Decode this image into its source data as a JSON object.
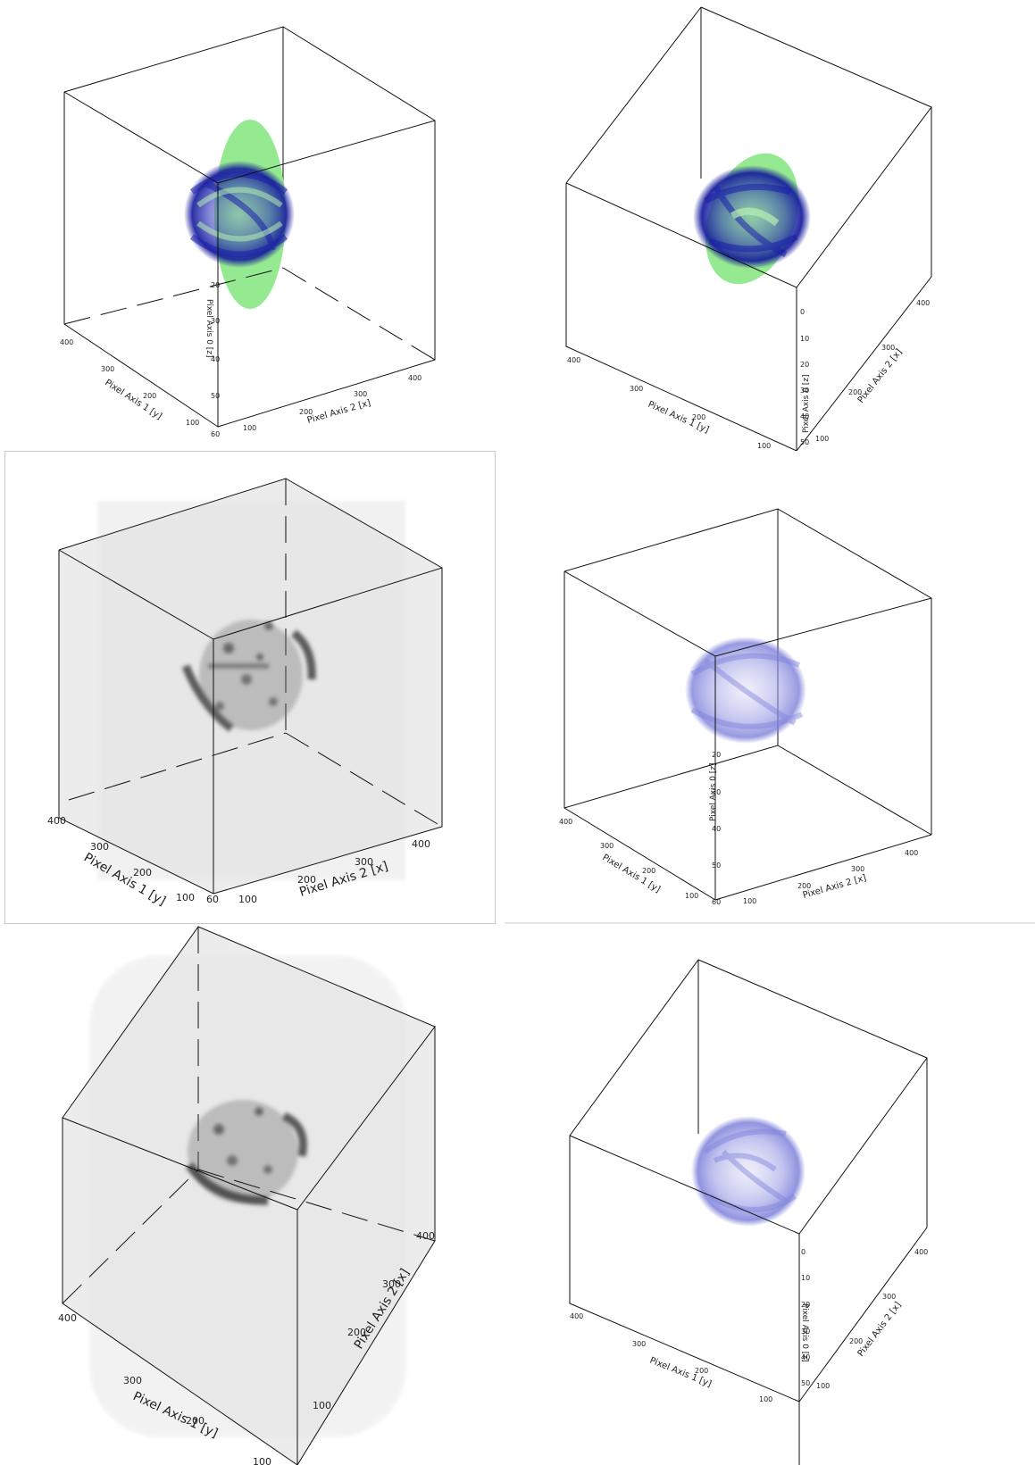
{
  "panels": [
    {
      "id": "top-left",
      "style": "blue-ring-green-disc",
      "axis_x_label": "Pixel Axis 2 [x]",
      "axis_y_label": "Pixel Axis 1 [y]",
      "axis_z_label": "Pixel Axis 0 [z]",
      "x_ticks": [
        "100",
        "200",
        "300",
        "400"
      ],
      "y_ticks": [
        "100",
        "200",
        "300",
        "400"
      ],
      "z_ticks": [
        "20",
        "30",
        "40",
        "50",
        "60"
      ]
    },
    {
      "id": "top-right",
      "style": "blue-ring-green-disc",
      "axis_x_label": "Pixel Axis 2 [x]",
      "axis_y_label": "Pixel Axis 1 [y]",
      "axis_z_label": "Pixel Axis 0 [z]",
      "x_ticks": [
        "100",
        "200",
        "300",
        "400"
      ],
      "y_ticks": [
        "100",
        "200",
        "300",
        "400"
      ],
      "z_ticks": [
        "0",
        "10",
        "20",
        "30",
        "40",
        "50"
      ]
    },
    {
      "id": "middle-left",
      "style": "grey-volume",
      "axis_x_label": "Pixel Axis 2 [x]",
      "axis_y_label": "Pixel Axis 1 [y]",
      "x_ticks": [
        "100",
        "200",
        "300",
        "400"
      ],
      "y_ticks": [
        "100",
        "200",
        "300",
        "400"
      ],
      "z_ticks": [
        "60"
      ]
    },
    {
      "id": "middle-right",
      "style": "light-blue-ring",
      "axis_x_label": "Pixel Axis 2 [x]",
      "axis_y_label": "Pixel Axis 1 [y]",
      "axis_z_label": "Pixel Axis 0 [z]",
      "x_ticks": [
        "100",
        "200",
        "300",
        "400"
      ],
      "y_ticks": [
        "100",
        "200",
        "300",
        "400"
      ],
      "z_ticks": [
        "20",
        "30",
        "40",
        "50",
        "60"
      ]
    },
    {
      "id": "bottom-left",
      "style": "grey-volume",
      "axis_x_label": "Pixel Axis 2 [x]",
      "axis_y_label": "Pixel Axis 1 [y]",
      "x_ticks": [
        "100",
        "200",
        "300",
        "400"
      ],
      "y_ticks": [
        "100",
        "200",
        "300",
        "400"
      ],
      "z_ticks": []
    },
    {
      "id": "bottom-right",
      "style": "light-blue-ring",
      "axis_x_label": "Pixel Axis 2 [x]",
      "axis_y_label": "Pixel Axis 1 [y]",
      "axis_z_label": "Pixel Axis 0 [z]",
      "x_ticks": [
        "100",
        "200",
        "300",
        "400"
      ],
      "y_ticks": [
        "100",
        "200",
        "300",
        "400"
      ],
      "z_ticks": [
        "0",
        "10",
        "20",
        "30",
        "40",
        "50"
      ]
    }
  ],
  "colors": {
    "ring_dark_blue": "#1a1fa8",
    "ring_light_blue": "#8c8ee0",
    "disc_green": "#8fe88a",
    "volume_grey": "#dcdcdc",
    "blob_dark": "#4a4a4a"
  }
}
